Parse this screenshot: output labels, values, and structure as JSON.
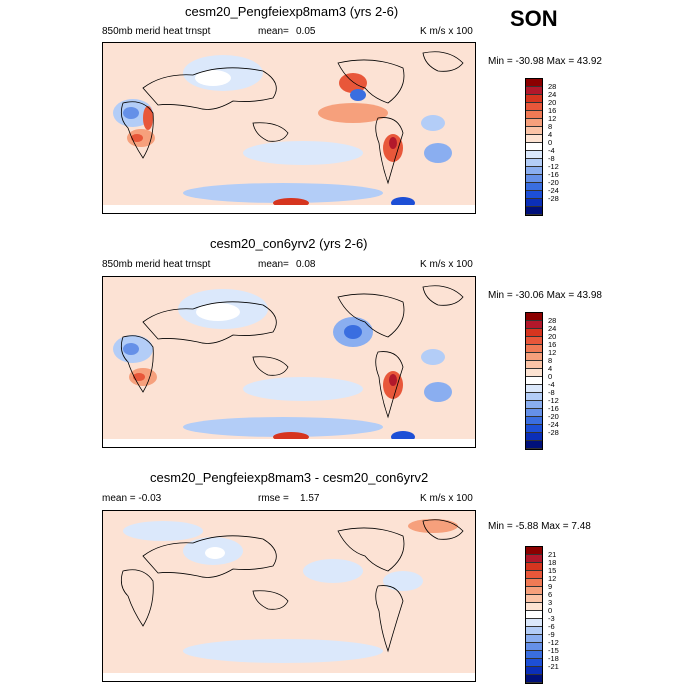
{
  "season": "SON",
  "panels": [
    {
      "title": "cesm20_Pengfeiexp8mam3 (yrs 2-6)",
      "left_label": "850mb merid heat trnspt",
      "mid_label": "mean=",
      "mid_value": "0.05",
      "units": "K m/s x 100",
      "minmax": "Min = -30.98 Max =  43.92",
      "colorbar": {
        "labels": [
          "28",
          "24",
          "20",
          "16",
          "12",
          "8",
          "4",
          "0",
          "-4",
          "-8",
          "-12",
          "-16",
          "-20",
          "-24",
          "-28"
        ],
        "colors": [
          "#8b0000",
          "#b2182b",
          "#d6351f",
          "#e8573a",
          "#f07a55",
          "#f6a07c",
          "#fbc4a7",
          "#fde3d2",
          "#ffffff",
          "#dbe8fb",
          "#b3cdf7",
          "#8aaef0",
          "#6590e8",
          "#3a6ee0",
          "#1d4fd6",
          "#0b2fb8",
          "#00107a"
        ]
      }
    },
    {
      "title": "cesm20_con6yrv2 (yrs 2-6)",
      "left_label": "850mb merid heat trnspt",
      "mid_label": "mean=",
      "mid_value": "0.08",
      "units": "K m/s x 100",
      "minmax": "Min = -30.06 Max =  43.98",
      "colorbar": {
        "labels": [
          "28",
          "24",
          "20",
          "16",
          "12",
          "8",
          "4",
          "0",
          "-4",
          "-8",
          "-12",
          "-16",
          "-20",
          "-24",
          "-28"
        ],
        "colors": [
          "#8b0000",
          "#b2182b",
          "#d6351f",
          "#e8573a",
          "#f07a55",
          "#f6a07c",
          "#fbc4a7",
          "#fde3d2",
          "#ffffff",
          "#dbe8fb",
          "#b3cdf7",
          "#8aaef0",
          "#6590e8",
          "#3a6ee0",
          "#1d4fd6",
          "#0b2fb8",
          "#00107a"
        ]
      }
    },
    {
      "title": "cesm20_Pengfeiexp8mam3 - cesm20_con6yrv2",
      "left_label": "mean =  -0.03",
      "mid_label": "rmse =",
      "mid_value": "1.57",
      "units": "K m/s x 100",
      "minmax": "Min =  -5.88 Max =   7.48",
      "colorbar": {
        "labels": [
          "21",
          "18",
          "15",
          "12",
          "9",
          "6",
          "3",
          "0",
          "-3",
          "-6",
          "-9",
          "-12",
          "-15",
          "-18",
          "-21"
        ],
        "colors": [
          "#8b0000",
          "#b2182b",
          "#d6351f",
          "#e8573a",
          "#f07a55",
          "#f6a07c",
          "#fbc4a7",
          "#fde3d2",
          "#ffffff",
          "#dbe8fb",
          "#b3cdf7",
          "#8aaef0",
          "#6590e8",
          "#3a6ee0",
          "#1d4fd6",
          "#0b2fb8",
          "#00107a"
        ]
      }
    }
  ]
}
